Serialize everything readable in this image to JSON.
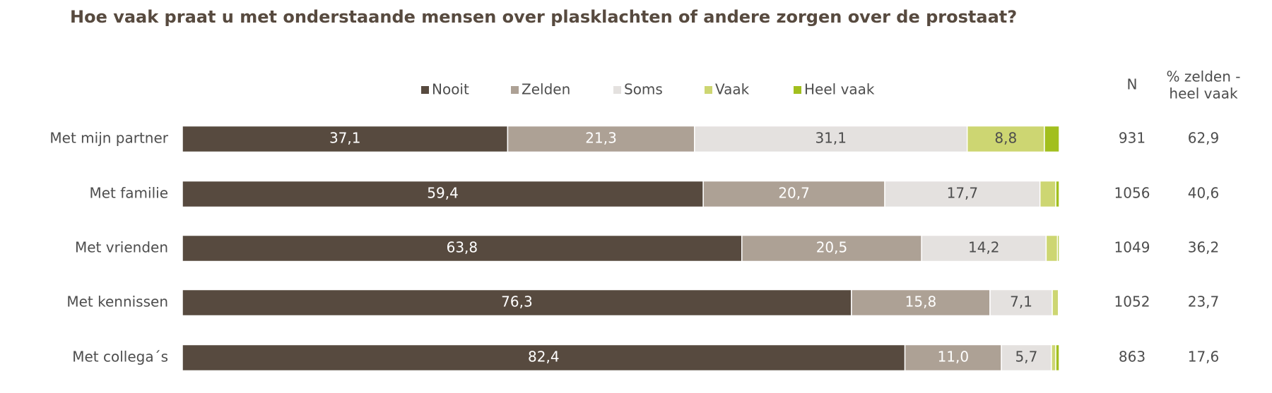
{
  "chart_data": {
    "type": "stacked-bar-horizontal",
    "title": "Hoe vaak praat u met onderstaande mensen over plasklachten of andere zorgen over de prostaat?",
    "categories": [
      "Met mijn partner",
      "Met familie",
      "Met vrienden",
      "Met kennissen",
      "Met collega´s"
    ],
    "xlim": [
      0,
      100
    ],
    "series": [
      {
        "name": "Nooit",
        "color": "#574a3f",
        "values": [
          37.1,
          59.4,
          63.8,
          76.3,
          82.4
        ],
        "value_labels": [
          "37,1",
          "59,4",
          "63,8",
          "76,3",
          "82,4"
        ]
      },
      {
        "name": "Zelden",
        "color": "#ada195",
        "values": [
          21.3,
          20.7,
          20.5,
          15.8,
          11.0
        ],
        "value_labels": [
          "21,3",
          "20,7",
          "20,5",
          "15,8",
          "11,0"
        ]
      },
      {
        "name": "Soms",
        "color": "#e4e1df",
        "values": [
          31.1,
          17.7,
          14.2,
          7.1,
          5.7
        ],
        "value_labels": [
          "31,1",
          "17,7",
          "14,2",
          "7,1",
          "5,7"
        ]
      },
      {
        "name": "Vaak",
        "color": "#cdd672",
        "values": [
          8.8,
          1.8,
          1.3,
          0.7,
          0.5
        ],
        "value_labels": [
          "8,8",
          null,
          null,
          null,
          null
        ]
      },
      {
        "name": "Heel vaak",
        "color": "#a2bf1e",
        "values": [
          1.7,
          0.4,
          0.2,
          0.1,
          0.4
        ],
        "value_labels": [
          null,
          null,
          null,
          null,
          null
        ]
      }
    ],
    "n_header": "N",
    "n": [
      931,
      1056,
      1049,
      1052,
      863
    ],
    "pct_header": [
      "% zelden -",
      "heel vaak"
    ],
    "pct": [
      62.9,
      40.6,
      36.2,
      23.7,
      17.6
    ],
    "pct_labels": [
      "62,9",
      "40,6",
      "36,2",
      "23,7",
      "17,6"
    ]
  }
}
